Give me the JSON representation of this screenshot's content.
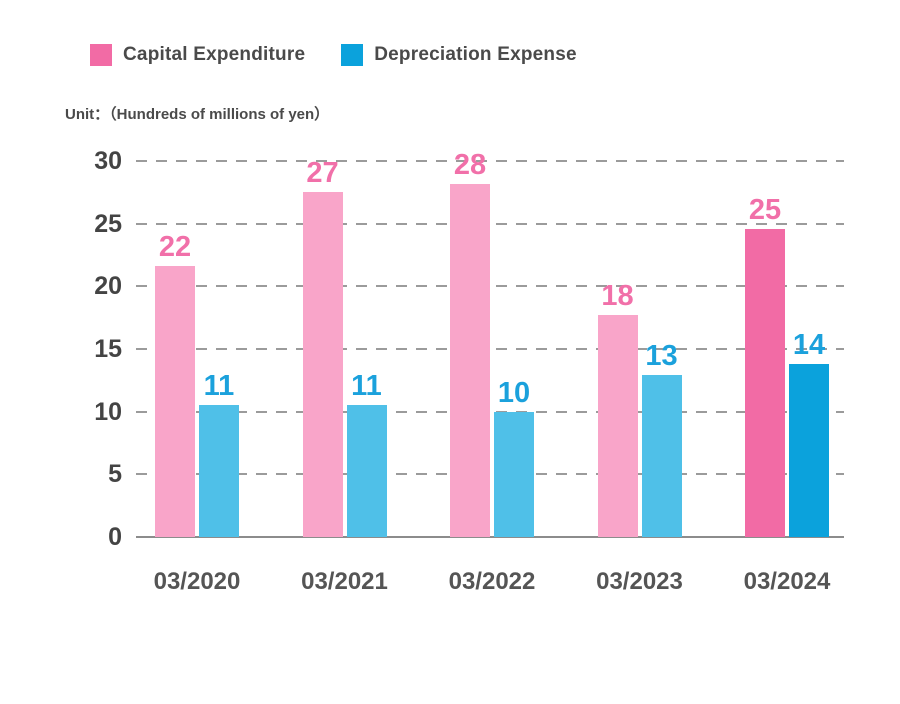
{
  "legend": {
    "items": [
      {
        "label": "Capital Expenditure",
        "color": "#F26BA5"
      },
      {
        "label": "Depreciation Expense",
        "color": "#0BA2DC"
      }
    ]
  },
  "unit_label": "Unit：（Hundreds of millions of yen）",
  "chart_data": {
    "type": "bar",
    "title": "",
    "unit": "Hundreds of millions of yen",
    "categories": [
      "03/2020",
      "03/2021",
      "03/2022",
      "03/2023",
      "03/2024"
    ],
    "series": [
      {
        "name": "Capital Expenditure",
        "values": [
          22,
          27,
          28,
          18,
          25
        ],
        "display_heights": [
          21.6,
          27.5,
          28.2,
          17.7,
          24.6
        ],
        "bar_color": "#F9A5C9",
        "bar_color_highlight": "#F26BA5",
        "label_color": "#F170A9"
      },
      {
        "name": "Depreciation Expense",
        "values": [
          11,
          11,
          10,
          13,
          14
        ],
        "display_heights": [
          10.5,
          10.5,
          10.0,
          12.9,
          13.8
        ],
        "bar_color": "#4FC0E8",
        "bar_color_highlight": "#0BA2DC",
        "label_color": "#1BA1DC"
      }
    ],
    "highlight_category": "03/2024",
    "highlight_index": 4,
    "y_ticks": [
      30,
      25,
      20,
      15,
      10,
      5,
      0
    ],
    "ylim": [
      0,
      30
    ],
    "grid": "horizontal-dashed",
    "legend_position": "top-left",
    "axis_colors": {
      "tick_text": "#444444",
      "category_text": "#555555",
      "gridline": "#9B9B9B",
      "baseline": "#8C8C8C"
    }
  }
}
